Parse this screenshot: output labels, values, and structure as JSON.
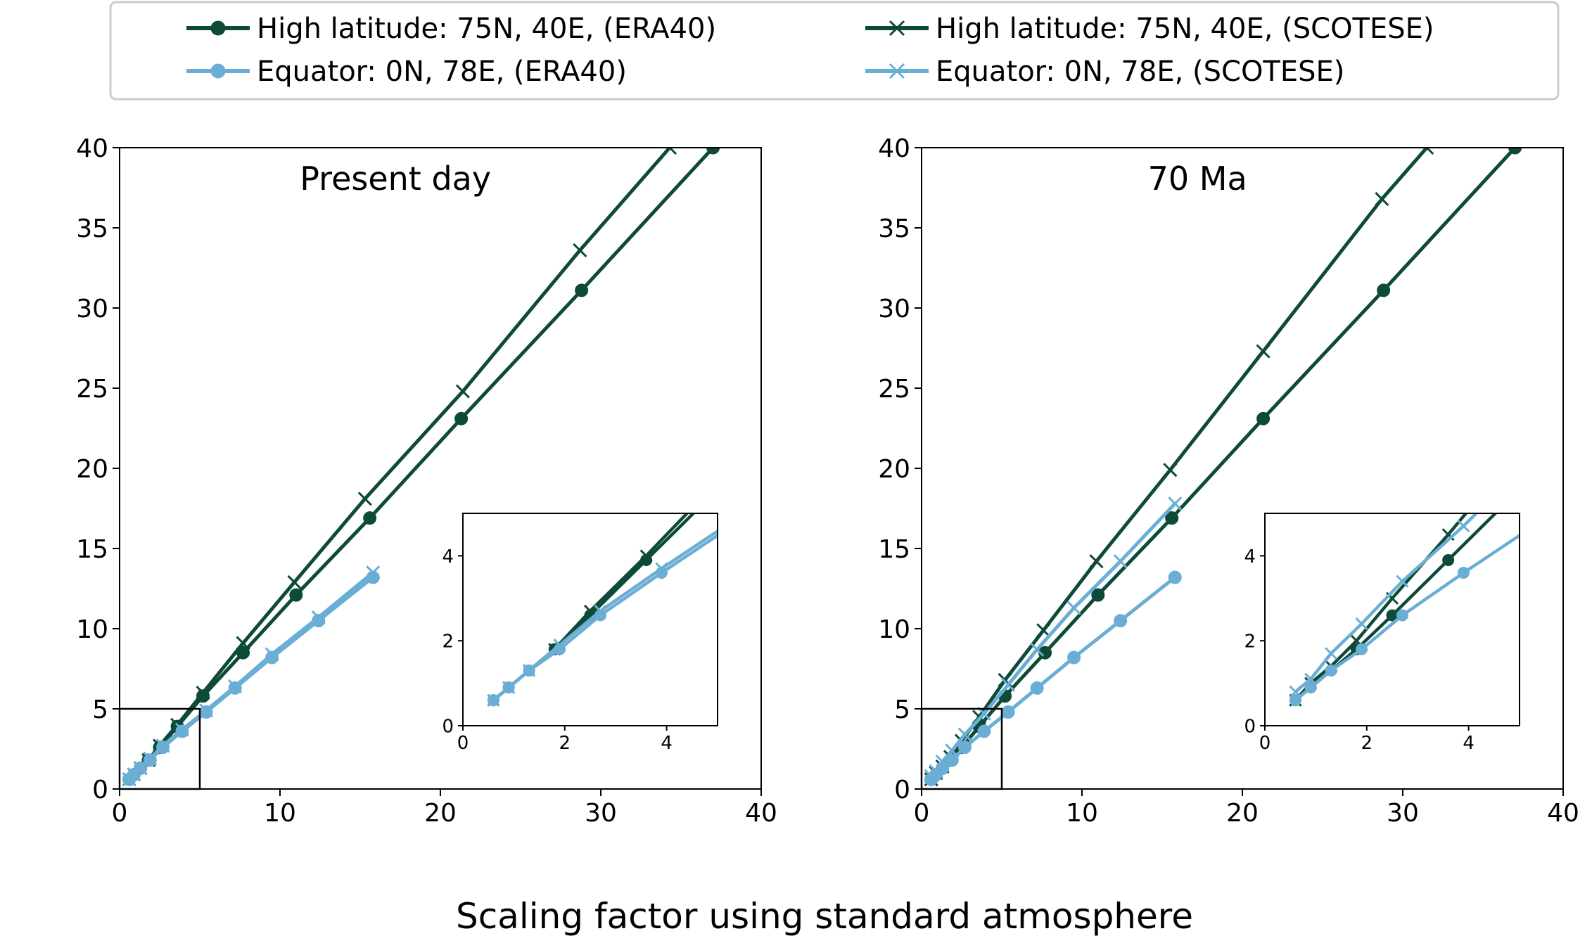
{
  "figure": {
    "xlabel": "Scaling factor using standard atmosphere"
  },
  "legend": {
    "placement": "top",
    "entries": [
      {
        "label": "High latitude: 75N, 40E, (ERA40)",
        "color": "#0d4a38",
        "marker": "circle"
      },
      {
        "label": "Equator: 0N, 78E, (ERA40)",
        "color": "#6aaed6",
        "marker": "circle"
      },
      {
        "label": "High latitude: 75N, 40E, (SCOTESE)",
        "color": "#0d4a38",
        "marker": "x"
      },
      {
        "label": "Equator: 0N, 78E, (SCOTESE)",
        "color": "#6aaed6",
        "marker": "x"
      }
    ]
  },
  "chart_data": [
    {
      "type": "line",
      "title": "Present day",
      "xlim": [
        0,
        40
      ],
      "ylim": [
        0,
        40
      ],
      "xticks": [
        0,
        10,
        20,
        30,
        40
      ],
      "yticks": [
        0,
        5,
        10,
        15,
        20,
        25,
        30,
        35,
        40
      ],
      "grid": false,
      "zoom_box": [
        0,
        5,
        0,
        5
      ],
      "series": [
        {
          "name": "High latitude: 75N, 40E, (ERA40)",
          "color": "#0d4a38",
          "marker": "circle",
          "x": [
            0.6,
            0.9,
            1.3,
            1.8,
            2.5,
            3.6,
            5.2,
            7.7,
            11.0,
            15.6,
            21.3,
            28.8,
            37.0
          ],
          "y": [
            0.6,
            0.9,
            1.3,
            1.8,
            2.6,
            3.9,
            5.8,
            8.5,
            12.1,
            16.9,
            23.1,
            31.1,
            40.0
          ]
        },
        {
          "name": "High latitude: 75N, 40E, (SCOTESE)",
          "color": "#0d4a38",
          "marker": "x",
          "x": [
            0.6,
            0.9,
            1.3,
            1.8,
            2.5,
            3.6,
            5.2,
            7.7,
            10.9,
            15.3,
            21.4,
            28.7,
            34.3
          ],
          "y": [
            0.6,
            0.9,
            1.3,
            1.8,
            2.7,
            4.0,
            6.0,
            9.1,
            12.9,
            18.1,
            24.8,
            33.6,
            40.0
          ]
        },
        {
          "name": "Equator: 0N, 78E, (ERA40)",
          "color": "#6aaed6",
          "marker": "circle",
          "x": [
            0.6,
            0.9,
            1.3,
            1.9,
            2.7,
            3.9,
            5.4,
            7.2,
            9.5,
            12.4,
            15.8
          ],
          "y": [
            0.6,
            0.9,
            1.3,
            1.8,
            2.6,
            3.6,
            4.8,
            6.3,
            8.2,
            10.5,
            13.2
          ]
        },
        {
          "name": "Equator: 0N, 78E, (SCOTESE)",
          "color": "#6aaed6",
          "marker": "x",
          "x": [
            0.6,
            0.9,
            1.3,
            1.9,
            2.7,
            3.9,
            5.4,
            7.2,
            9.5,
            12.4,
            15.8
          ],
          "y": [
            0.6,
            0.9,
            1.3,
            1.9,
            2.7,
            3.7,
            4.9,
            6.4,
            8.4,
            10.7,
            13.5
          ]
        }
      ],
      "inset": {
        "xlim": [
          0,
          5
        ],
        "ylim": [
          0,
          5
        ],
        "xticks": [
          0,
          2,
          4
        ],
        "yticks": [
          0,
          2,
          4
        ]
      }
    },
    {
      "type": "line",
      "title": "70 Ma",
      "xlim": [
        0,
        40
      ],
      "ylim": [
        0,
        40
      ],
      "xticks": [
        0,
        10,
        20,
        30,
        40
      ],
      "yticks": [
        0,
        5,
        10,
        15,
        20,
        25,
        30,
        35,
        40
      ],
      "grid": false,
      "zoom_box": [
        0,
        5,
        0,
        5
      ],
      "series": [
        {
          "name": "High latitude: 75N, 40E, (ERA40)",
          "color": "#0d4a38",
          "marker": "circle",
          "x": [
            0.6,
            0.9,
            1.3,
            1.8,
            2.5,
            3.6,
            5.2,
            7.7,
            11.0,
            15.6,
            21.3,
            28.8,
            37.0
          ],
          "y": [
            0.6,
            0.9,
            1.3,
            1.8,
            2.6,
            3.9,
            5.8,
            8.5,
            12.1,
            16.9,
            23.1,
            31.1,
            40.0
          ]
        },
        {
          "name": "High latitude: 75N, 40E, (SCOTESE)",
          "color": "#0d4a38",
          "marker": "x",
          "x": [
            0.6,
            0.9,
            1.3,
            1.8,
            2.5,
            3.6,
            5.2,
            7.6,
            10.9,
            15.5,
            21.3,
            28.7,
            31.5
          ],
          "y": [
            0.6,
            1.0,
            1.4,
            2.0,
            3.0,
            4.5,
            6.8,
            9.9,
            14.2,
            19.9,
            27.3,
            36.8,
            40.0
          ]
        },
        {
          "name": "Equator: 0N, 78E, (ERA40)",
          "color": "#6aaed6",
          "marker": "circle",
          "x": [
            0.6,
            0.9,
            1.3,
            1.9,
            2.7,
            3.9,
            5.4,
            7.2,
            9.5,
            12.4,
            15.8
          ],
          "y": [
            0.6,
            0.9,
            1.3,
            1.8,
            2.6,
            3.6,
            4.8,
            6.3,
            8.2,
            10.5,
            13.2
          ]
        },
        {
          "name": "Equator: 0N, 78E, (SCOTESE)",
          "color": "#6aaed6",
          "marker": "x",
          "x": [
            0.6,
            0.9,
            1.3,
            1.9,
            2.7,
            3.9,
            5.4,
            7.2,
            9.5,
            12.4,
            15.8
          ],
          "y": [
            0.8,
            1.1,
            1.7,
            2.4,
            3.4,
            4.7,
            6.5,
            8.7,
            11.3,
            14.2,
            17.8
          ]
        }
      ],
      "inset": {
        "xlim": [
          0,
          5
        ],
        "ylim": [
          0,
          5
        ],
        "xticks": [
          0,
          2,
          4
        ],
        "yticks": [
          0,
          2,
          4
        ]
      }
    }
  ]
}
